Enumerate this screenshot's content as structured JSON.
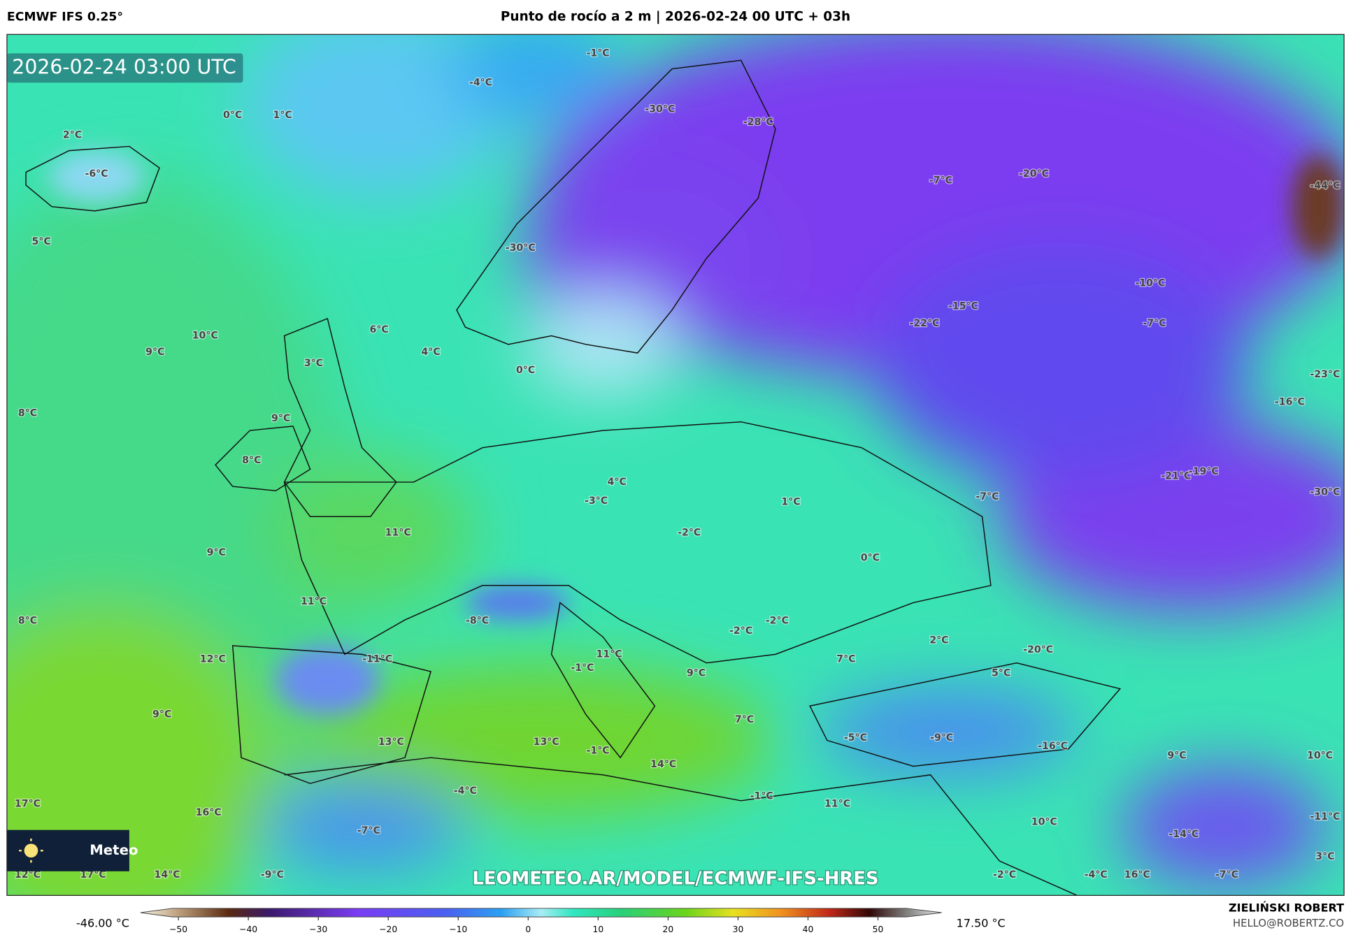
{
  "header": {
    "model": "ECMWF IFS 0.25°",
    "title": "Punto de rocío a 2 m | 2026-02-24 00 UTC + 03h"
  },
  "map": {
    "timestamp": "2026-02-24 03:00 UTC",
    "watermark": "LEOMETEO.AR/MODEL/ECMWF-IFS-HRES",
    "labels": [
      "-1°C",
      "-4°C",
      "0°C",
      "1°C",
      "2°C",
      "-6°C",
      "-30°C",
      "-28°C",
      "-7°C",
      "-20°C",
      "-44°C",
      "5°C",
      "-30°C",
      "-10°C",
      "-15°C",
      "-22°C",
      "-7°C",
      "10°C",
      "6°C",
      "9°C",
      "4°C",
      "3°C",
      "0°C",
      "-23°C",
      "-16°C",
      "8°C",
      "9°C",
      "8°C",
      "-21°C",
      "-19°C",
      "4°C",
      "-7°C",
      "-30°C",
      "-3°C",
      "1°C",
      "11°C",
      "-2°C",
      "9°C",
      "0°C",
      "11°C",
      "8°C",
      "-8°C",
      "-2°C",
      "-2°C",
      "2°C",
      "-20°C",
      "12°C",
      "-11°C",
      "11°C",
      "-1°C",
      "7°C",
      "9°C",
      "5°C",
      "9°C",
      "7°C",
      "-5°C",
      "-9°C",
      "13°C",
      "13°C",
      "-1°C",
      "-16°C",
      "9°C",
      "10°C",
      "14°C",
      "-4°C",
      "-1°C",
      "11°C",
      "17°C",
      "16°C",
      "-11°C",
      "-7°C",
      "10°C",
      "-14°C",
      "3°C",
      "12°C",
      "17°C",
      "14°C",
      "-9°C",
      "-2°C",
      "-4°C",
      "16°C",
      "-7°C"
    ]
  },
  "logo": {
    "text": "Meteo"
  },
  "legend": {
    "min_label": "-46.00 °C",
    "max_label": "17.50 °C",
    "ticks": [
      {
        "value": -50,
        "label": "−50"
      },
      {
        "value": -40,
        "label": "−40"
      },
      {
        "value": -30,
        "label": "−30"
      },
      {
        "value": -20,
        "label": "−20"
      },
      {
        "value": -10,
        "label": "−10"
      },
      0,
      10,
      20,
      30,
      40,
      50
    ]
  },
  "credits": {
    "author": "ZIELIŃSKI ROBERT",
    "email": "HELLO@ROBERTZ.CO"
  }
}
